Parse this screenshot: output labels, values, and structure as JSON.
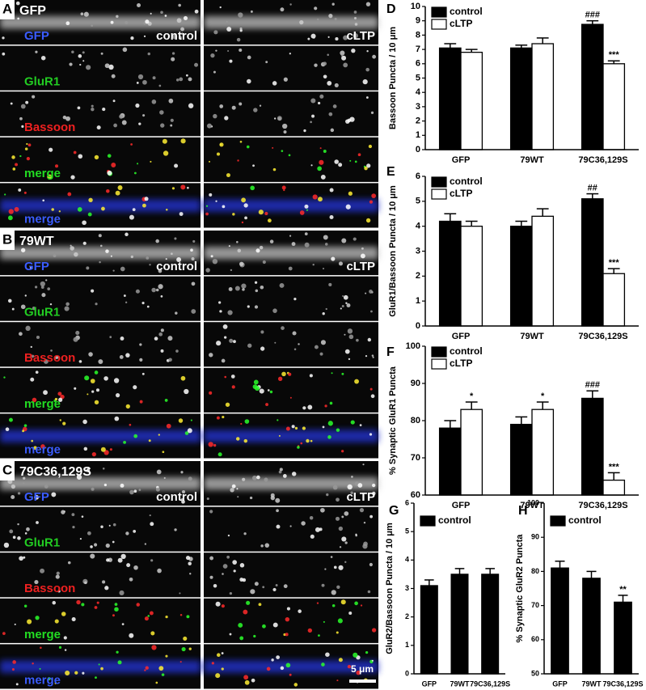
{
  "image_panels": [
    {
      "letter": "A",
      "title": "GFP",
      "rows": [
        "GFP",
        "GluR1",
        "Bassoon",
        "merge",
        "merge"
      ],
      "conditions": [
        "control",
        "cLTP"
      ]
    },
    {
      "letter": "B",
      "title": "79WT",
      "rows": [
        "GFP",
        "GluR1",
        "Bassoon",
        "merge",
        "merge"
      ],
      "conditions": [
        "control",
        "cLTP"
      ]
    },
    {
      "letter": "C",
      "title": "79C36,129S",
      "rows": [
        "GFP",
        "GluR1",
        "Bassoon",
        "merge",
        "merge"
      ],
      "conditions": [
        "control",
        "cLTP"
      ]
    }
  ],
  "scale_bar": "5 μm",
  "chart_data": [
    {
      "type": "bar",
      "panel": "D",
      "ylabel": "Bassoon Puncta / 10 μm",
      "categories": [
        "GFP",
        "79WT",
        "79C36,129S"
      ],
      "series": [
        {
          "name": "control",
          "color": "#000000",
          "values": [
            7.1,
            7.1,
            8.75
          ],
          "errors": [
            0.3,
            0.2,
            0.25
          ],
          "significance": [
            null,
            null,
            "###"
          ]
        },
        {
          "name": "cLTP",
          "color": "#ffffff",
          "values": [
            6.8,
            7.4,
            6.0
          ],
          "errors": [
            0.2,
            0.4,
            0.2
          ],
          "significance": [
            null,
            null,
            "***"
          ]
        }
      ],
      "ylim": [
        0,
        10
      ],
      "yticks": [
        0,
        1,
        2,
        3,
        4,
        5,
        6,
        7,
        8,
        9,
        10
      ]
    },
    {
      "type": "bar",
      "panel": "E",
      "ylabel": "GluR1/Bassoon Puncta / 10 μm",
      "categories": [
        "GFP",
        "79WT",
        "79C36,129S"
      ],
      "series": [
        {
          "name": "control",
          "color": "#000000",
          "values": [
            4.2,
            4.0,
            5.1
          ],
          "errors": [
            0.3,
            0.2,
            0.2
          ],
          "significance": [
            null,
            null,
            "##"
          ]
        },
        {
          "name": "cLTP",
          "color": "#ffffff",
          "values": [
            4.0,
            4.4,
            2.1
          ],
          "errors": [
            0.2,
            0.3,
            0.2
          ],
          "significance": [
            null,
            null,
            "***"
          ]
        }
      ],
      "ylim": [
        0,
        6
      ],
      "yticks": [
        0,
        1,
        2,
        3,
        4,
        5,
        6
      ]
    },
    {
      "type": "bar",
      "panel": "F",
      "ylabel": "% Synaptic GluR1 Puncta",
      "categories": [
        "GFP",
        "79WT",
        "79C36,129S"
      ],
      "series": [
        {
          "name": "control",
          "color": "#000000",
          "values": [
            78,
            79,
            86
          ],
          "errors": [
            2,
            2,
            2
          ],
          "significance": [
            null,
            null,
            "###"
          ]
        },
        {
          "name": "cLTP",
          "color": "#ffffff",
          "values": [
            83,
            83,
            64
          ],
          "errors": [
            2,
            2,
            2
          ],
          "significance": [
            "*",
            "*",
            "***"
          ]
        }
      ],
      "ylim": [
        60,
        100
      ],
      "yticks": [
        60,
        70,
        80,
        90,
        100
      ]
    },
    {
      "type": "bar",
      "panel": "G",
      "ylabel": "GluR2/Bassoon Puncta / 10 μm",
      "categories": [
        "GFP",
        "79WT",
        "79C36,129S"
      ],
      "series": [
        {
          "name": "control",
          "color": "#000000",
          "values": [
            3.1,
            3.5,
            3.5
          ],
          "errors": [
            0.2,
            0.2,
            0.2
          ],
          "significance": [
            null,
            null,
            null
          ]
        }
      ],
      "ylim": [
        0,
        6
      ],
      "yticks": [
        0,
        1,
        2,
        3,
        4,
        5,
        6
      ]
    },
    {
      "type": "bar",
      "panel": "H",
      "ylabel": "% Synaptic GluR2 Puncta",
      "categories": [
        "GFP",
        "79WT",
        "79C36,129S"
      ],
      "series": [
        {
          "name": "control",
          "color": "#000000",
          "values": [
            81,
            78,
            71
          ],
          "errors": [
            2,
            2,
            2
          ],
          "significance": [
            null,
            null,
            "**"
          ]
        }
      ],
      "ylim": [
        50,
        100
      ],
      "yticks": [
        50,
        60,
        70,
        80,
        90,
        100
      ]
    }
  ]
}
